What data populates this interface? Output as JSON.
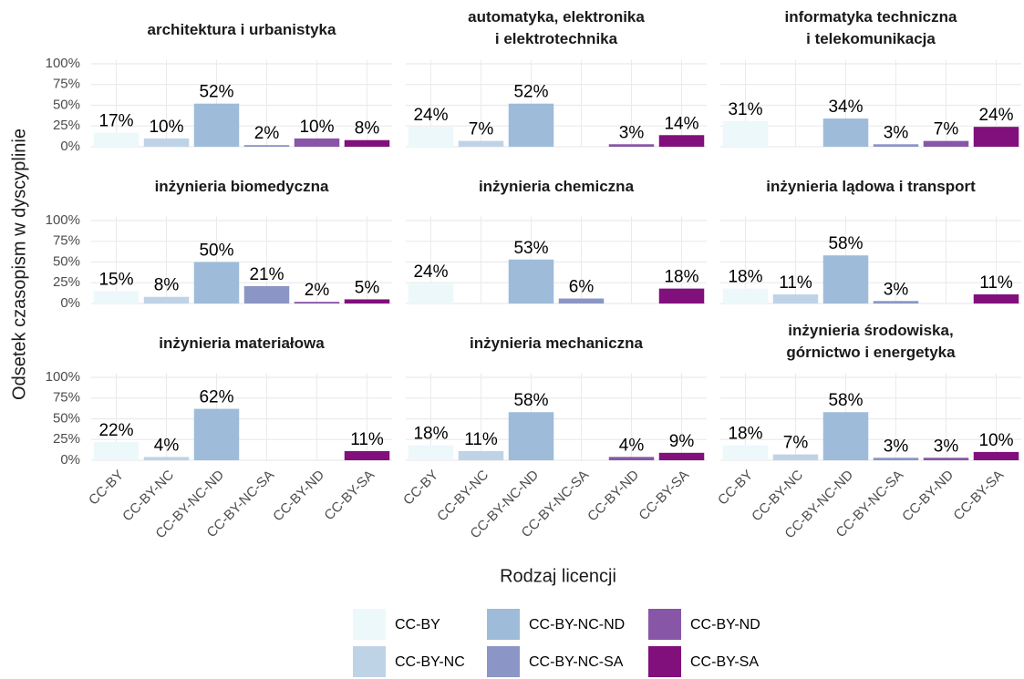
{
  "chart_data": {
    "type": "bar",
    "x_label": "Rodzaj licencji",
    "y_label": "Odsetek czasopism w dyscyplinie",
    "categories": [
      "CC-BY",
      "CC-BY-NC",
      "CC-BY-NC-ND",
      "CC-BY-NC-SA",
      "CC-BY-ND",
      "CC-BY-SA"
    ],
    "colors": [
      "#edf8fb",
      "#bfd3e6",
      "#9ebcda",
      "#8c96c6",
      "#8856a7",
      "#810f7c"
    ],
    "ylim": [
      0,
      105
    ],
    "yticks": [
      {
        "value": 0,
        "label": "0%"
      },
      {
        "value": 25,
        "label": "25%"
      },
      {
        "value": 50,
        "label": "50%"
      },
      {
        "value": 75,
        "label": "75%"
      },
      {
        "value": 100,
        "label": "100%"
      }
    ],
    "grid": true,
    "legend": "bottom",
    "panels": [
      {
        "title": [
          "architektura i urbanistyka"
        ],
        "values": [
          17,
          10,
          52,
          2,
          10,
          8
        ],
        "value_labels": [
          "17%",
          "10%",
          "52%",
          "2%",
          "10%",
          "8%"
        ]
      },
      {
        "title": [
          "automatyka, elektronika",
          "i elektrotechnika"
        ],
        "values": [
          24,
          7,
          52,
          null,
          3,
          14
        ],
        "value_labels": [
          "24%",
          "7%",
          "52%",
          null,
          "3%",
          "14%"
        ]
      },
      {
        "title": [
          "informatyka techniczna",
          "i telekomunikacja"
        ],
        "values": [
          31,
          null,
          34,
          3,
          7,
          24
        ],
        "value_labels": [
          "31%",
          null,
          "34%",
          "3%",
          "7%",
          "24%"
        ]
      },
      {
        "title": [
          "inżynieria biomedyczna"
        ],
        "values": [
          15,
          8,
          50,
          21,
          2,
          5
        ],
        "value_labels": [
          "15%",
          "8%",
          "50%",
          "21%",
          "2%",
          "5%"
        ]
      },
      {
        "title": [
          "inżynieria chemiczna"
        ],
        "values": [
          24,
          null,
          53,
          6,
          null,
          18
        ],
        "value_labels": [
          "24%",
          null,
          "53%",
          "6%",
          null,
          "18%"
        ]
      },
      {
        "title": [
          "inżynieria lądowa i transport"
        ],
        "values": [
          18,
          11,
          58,
          3,
          null,
          11
        ],
        "value_labels": [
          "18%",
          "11%",
          "58%",
          "3%",
          null,
          "11%"
        ]
      },
      {
        "title": [
          "inżynieria materiałowa"
        ],
        "values": [
          22,
          4,
          62,
          null,
          null,
          11
        ],
        "value_labels": [
          "22%",
          "4%",
          "62%",
          null,
          null,
          "11%"
        ]
      },
      {
        "title": [
          "inżynieria mechaniczna"
        ],
        "values": [
          18,
          11,
          58,
          null,
          4,
          9
        ],
        "value_labels": [
          "18%",
          "11%",
          "58%",
          null,
          "4%",
          "9%"
        ]
      },
      {
        "title": [
          "inżynieria środowiska,",
          "górnictwo i energetyka"
        ],
        "values": [
          18,
          7,
          58,
          3,
          3,
          10
        ],
        "value_labels": [
          "18%",
          "7%",
          "58%",
          "3%",
          "3%",
          "10%"
        ]
      }
    ]
  }
}
